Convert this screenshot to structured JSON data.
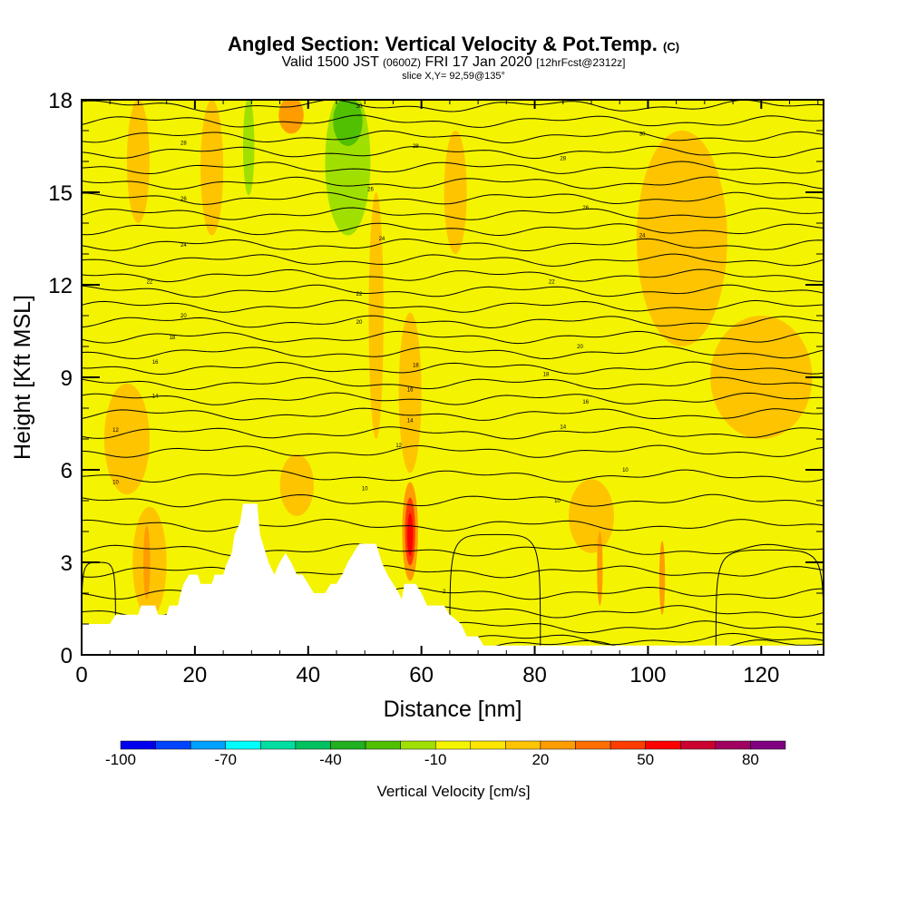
{
  "header": {
    "title_main": "Angled Section: Vertical Velocity & Pot.Temp.",
    "title_unit": "(C)",
    "valid_prefix": "Valid 1500 JST",
    "valid_utc": "(0600Z)",
    "valid_date": "FRI 17 Jan 2020",
    "forecast_tag": "[12hrFcst@2312z]",
    "slice": "slice X,Y= 92,59@135°"
  },
  "chart_data": {
    "type": "heatmap",
    "xlabel": "Distance [nm]",
    "ylabel": "Height [Kft MSL]",
    "xlim": [
      0,
      131
    ],
    "ylim": [
      0,
      18
    ],
    "x_ticks": [
      "0",
      "20",
      "40",
      "60",
      "80",
      "100",
      "120"
    ],
    "y_ticks": [
      "0",
      "3",
      "6",
      "9",
      "12",
      "15",
      "18"
    ],
    "x_tick_values": [
      0,
      20,
      40,
      60,
      80,
      100,
      120
    ],
    "y_tick_values": [
      0,
      3,
      6,
      9,
      12,
      15,
      18
    ],
    "terrain": [
      [
        0,
        1.0
      ],
      [
        5,
        1.0
      ],
      [
        6,
        1.3
      ],
      [
        10,
        1.3
      ],
      [
        10.5,
        1.6
      ],
      [
        13,
        1.6
      ],
      [
        13.5,
        1.3
      ],
      [
        15,
        1.3
      ],
      [
        15.5,
        1.6
      ],
      [
        17,
        1.6
      ],
      [
        17.5,
        2.0
      ],
      [
        18,
        2.3
      ],
      [
        19,
        2.6
      ],
      [
        20.5,
        2.6
      ],
      [
        21,
        2.3
      ],
      [
        23,
        2.3
      ],
      [
        23.5,
        2.6
      ],
      [
        25,
        2.6
      ],
      [
        25.5,
        2.9
      ],
      [
        26.5,
        3.3
      ],
      [
        27,
        3.9
      ],
      [
        28,
        4.3
      ],
      [
        28.5,
        4.9
      ],
      [
        31,
        4.9
      ],
      [
        31.5,
        3.9
      ],
      [
        32,
        3.6
      ],
      [
        33,
        3.0
      ],
      [
        34,
        2.6
      ],
      [
        35,
        3.0
      ],
      [
        36,
        3.3
      ],
      [
        37,
        3.0
      ],
      [
        38,
        2.6
      ],
      [
        39,
        2.6
      ],
      [
        40,
        2.3
      ],
      [
        41,
        2.0
      ],
      [
        43,
        2.0
      ],
      [
        44,
        2.3
      ],
      [
        45,
        2.3
      ],
      [
        46,
        2.6
      ],
      [
        47,
        3.0
      ],
      [
        48,
        3.3
      ],
      [
        49,
        3.6
      ],
      [
        52,
        3.6
      ],
      [
        53,
        3.0
      ],
      [
        54,
        2.6
      ],
      [
        55,
        2.3
      ],
      [
        56,
        2.0
      ],
      [
        56.5,
        1.8
      ],
      [
        57,
        2.3
      ],
      [
        59,
        2.3
      ],
      [
        60,
        2.0
      ],
      [
        61,
        1.6
      ],
      [
        64,
        1.6
      ],
      [
        65,
        1.3
      ],
      [
        67,
        1.0
      ],
      [
        68,
        0.6
      ],
      [
        70,
        0.6
      ],
      [
        71,
        0.3
      ],
      [
        131,
        0.3
      ]
    ],
    "theta_contour_labels": [
      {
        "text": "10",
        "x": 6,
        "y": 5.6
      },
      {
        "text": "10",
        "x": 50,
        "y": 5.4
      },
      {
        "text": "10",
        "x": 84,
        "y": 5.0
      },
      {
        "text": "10",
        "x": 96,
        "y": 6.0
      },
      {
        "text": "12",
        "x": 6,
        "y": 7.3
      },
      {
        "text": "12",
        "x": 56,
        "y": 6.8
      },
      {
        "text": "14",
        "x": 13,
        "y": 8.4
      },
      {
        "text": "14",
        "x": 58,
        "y": 7.6
      },
      {
        "text": "14",
        "x": 85,
        "y": 7.4
      },
      {
        "text": "16",
        "x": 13,
        "y": 9.5
      },
      {
        "text": "16",
        "x": 58,
        "y": 8.6
      },
      {
        "text": "16",
        "x": 89,
        "y": 8.2
      },
      {
        "text": "18",
        "x": 16,
        "y": 10.3
      },
      {
        "text": "18",
        "x": 59,
        "y": 9.4
      },
      {
        "text": "18",
        "x": 82,
        "y": 9.1
      },
      {
        "text": "20",
        "x": 18,
        "y": 11.0
      },
      {
        "text": "20",
        "x": 49,
        "y": 10.8
      },
      {
        "text": "20",
        "x": 88,
        "y": 10.0
      },
      {
        "text": "22",
        "x": 12,
        "y": 12.1
      },
      {
        "text": "22",
        "x": 49,
        "y": 11.7
      },
      {
        "text": "22",
        "x": 83,
        "y": 12.1
      },
      {
        "text": "24",
        "x": 18,
        "y": 13.3
      },
      {
        "text": "24",
        "x": 53,
        "y": 13.5
      },
      {
        "text": "24",
        "x": 99,
        "y": 13.6
      },
      {
        "text": "26",
        "x": 18,
        "y": 14.8
      },
      {
        "text": "26",
        "x": 51,
        "y": 15.1
      },
      {
        "text": "26",
        "x": 89,
        "y": 14.5
      },
      {
        "text": "28",
        "x": 18,
        "y": 16.6
      },
      {
        "text": "28",
        "x": 59,
        "y": 16.5
      },
      {
        "text": "28",
        "x": 85,
        "y": 16.1
      },
      {
        "text": "30",
        "x": 49,
        "y": 17.8
      },
      {
        "text": "30",
        "x": 99,
        "y": 16.9
      }
    ],
    "contour_levels_ft_kft": [
      0.3,
      0.5,
      0.9,
      1.4,
      2.0,
      2.7,
      3.4,
      4.2,
      5.0,
      5.8,
      6.6,
      7.2,
      7.8,
      8.3,
      8.8,
      9.3,
      9.8,
      10.3,
      10.8,
      11.3,
      11.8,
      12.3,
      12.8,
      13.3,
      13.8,
      14.3,
      14.8,
      15.3,
      15.8,
      16.3,
      16.8,
      17.3,
      17.8
    ],
    "closed_contours": [
      {
        "x0": 0,
        "x1": 6,
        "y0": 0.3,
        "y1": 3.0
      },
      {
        "x0": 65,
        "x1": 81,
        "y0": 0.3,
        "y1": 3.9
      },
      {
        "x0": 112,
        "x1": 131,
        "y0": 0.3,
        "y1": 3.4
      }
    ],
    "small_contour_label": {
      "text": "2",
      "x": 64,
      "y": 2.0
    },
    "velocity_regions": [
      {
        "level": -10,
        "x": 29.5,
        "y": 15.5,
        "rx": 2.2,
        "ry": 2.8
      },
      {
        "level": -20,
        "x": 29.5,
        "y": 16.5,
        "rx": 1.0,
        "ry": 1.6
      },
      {
        "level": -10,
        "x": 36,
        "y": 16.0,
        "rx": 3.0,
        "ry": 2.2
      },
      {
        "level": -10,
        "x": 48,
        "y": 15.5,
        "rx": 6.0,
        "ry": 3.5
      },
      {
        "level": -20,
        "x": 47,
        "y": 16.0,
        "rx": 4.0,
        "ry": 2.4
      },
      {
        "level": -30,
        "x": 47,
        "y": 17.3,
        "rx": 2.6,
        "ry": 0.8
      },
      {
        "level": -10,
        "x": 56,
        "y": 14.0,
        "rx": 2.8,
        "ry": 3.5
      },
      {
        "level": -10,
        "x": 14.5,
        "y": 13.5,
        "rx": 1.0,
        "ry": 2.6
      },
      {
        "level": -10,
        "x": 37,
        "y": 11.3,
        "rx": 1.4,
        "ry": 2.2
      },
      {
        "level": -10,
        "x": 54,
        "y": 11.5,
        "rx": 1.8,
        "ry": 1.5
      },
      {
        "level": -10,
        "x": 75,
        "y": 15.0,
        "rx": 1.5,
        "ry": 1.5
      },
      {
        "level": -10,
        "x": 82,
        "y": 11.5,
        "rx": 1.0,
        "ry": 1.4
      },
      {
        "level": -10,
        "x": 124,
        "y": 17.0,
        "rx": 1.8,
        "ry": 1.6
      },
      {
        "level": -10,
        "x": 51,
        "y": 4.0,
        "rx": 1.2,
        "ry": 0.8
      },
      {
        "level": 10,
        "x": 10,
        "y": 16.0,
        "rx": 2.0,
        "ry": 2.0
      },
      {
        "level": 10,
        "x": 23,
        "y": 15.8,
        "rx": 2.0,
        "ry": 2.2
      },
      {
        "level": 20,
        "x": 37,
        "y": 17.5,
        "rx": 2.2,
        "ry": 0.6
      },
      {
        "level": 10,
        "x": 52,
        "y": 11.0,
        "rx": 1.3,
        "ry": 4.0
      },
      {
        "level": 10,
        "x": 66,
        "y": 15.0,
        "rx": 2.0,
        "ry": 2.0
      },
      {
        "level": 10,
        "x": 106,
        "y": 13.5,
        "rx": 8.0,
        "ry": 3.5
      },
      {
        "level": 10,
        "x": 120,
        "y": 9.0,
        "rx": 9.0,
        "ry": 2.0
      },
      {
        "level": 10,
        "x": 58,
        "y": 8.5,
        "rx": 2.0,
        "ry": 2.6
      },
      {
        "level": 10,
        "x": 8,
        "y": 7.0,
        "rx": 4.0,
        "ry": 1.8
      },
      {
        "level": 10,
        "x": 12,
        "y": 3.0,
        "rx": 3.0,
        "ry": 1.8
      },
      {
        "level": 10,
        "x": 38,
        "y": 5.5,
        "rx": 3.0,
        "ry": 1.0
      },
      {
        "level": 10,
        "x": 90,
        "y": 4.5,
        "rx": 4.0,
        "ry": 1.2
      },
      {
        "level": 20,
        "x": 11.5,
        "y": 3.0,
        "rx": 0.6,
        "ry": 1.2
      },
      {
        "level": 20,
        "x": 91.5,
        "y": 2.8,
        "rx": 0.5,
        "ry": 1.2
      },
      {
        "level": 20,
        "x": 102.5,
        "y": 2.5,
        "rx": 0.5,
        "ry": 1.2
      },
      {
        "level": 20,
        "x": 58,
        "y": 4.0,
        "rx": 1.4,
        "ry": 1.6
      },
      {
        "level": 40,
        "x": 58,
        "y": 4.0,
        "rx": 0.9,
        "ry": 1.1
      },
      {
        "level": 50,
        "x": 58,
        "y": 3.9,
        "rx": 0.5,
        "ry": 0.7
      }
    ],
    "colorbar": {
      "title": "Vertical Velocity [cm/s]",
      "levels": [
        -100,
        -90,
        -80,
        -70,
        -60,
        -50,
        -40,
        -30,
        -20,
        -10,
        0,
        10,
        20,
        30,
        40,
        50,
        60,
        70,
        80,
        90
      ],
      "colors": [
        "#0000ee",
        "#0044ff",
        "#00a0ff",
        "#00ffff",
        "#00dda0",
        "#00c060",
        "#20b020",
        "#50c000",
        "#a0e000",
        "#f4f400",
        "#ffe600",
        "#ffc400",
        "#ff9c00",
        "#ff6e00",
        "#ff3c00",
        "#ff0000",
        "#cc0030",
        "#a00060",
        "#800080"
      ],
      "tick_labels": [
        "-100",
        "-70",
        "-40",
        "-10",
        "20",
        "50",
        "80"
      ],
      "tick_values": [
        -100,
        -70,
        -40,
        -10,
        20,
        50,
        80
      ]
    }
  }
}
